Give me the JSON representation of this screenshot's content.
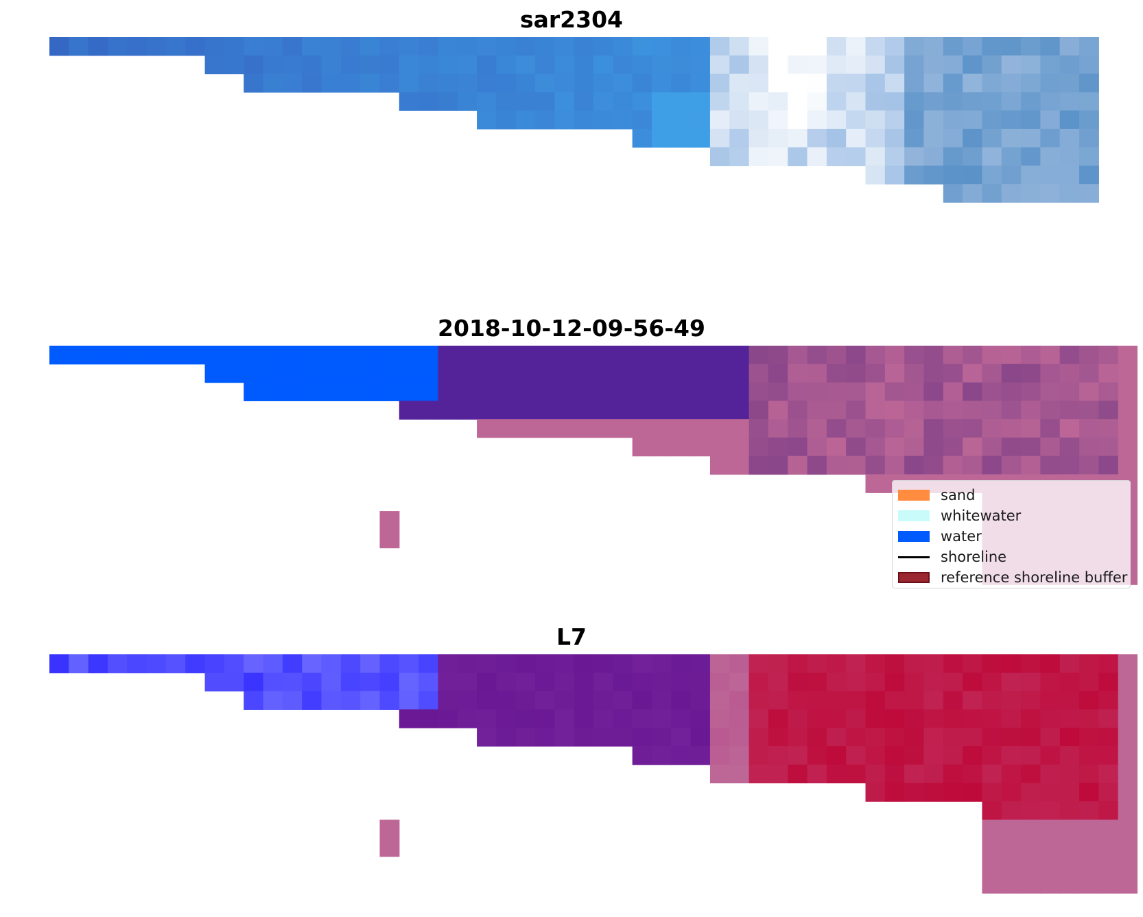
{
  "chart_data": [
    {
      "type": "heatmap",
      "title": "sar2304",
      "axes": "off",
      "grid": false,
      "colormap": "blue-to-white",
      "colors": {
        "low": "#3567c4",
        "mid": "#3f9fe6",
        "high": "#ffffff"
      }
    },
    {
      "type": "heatmap",
      "title": "2018-10-12-09-56-49",
      "axes": "off",
      "grid": false,
      "legend_placement": "lower-right",
      "legend": [
        {
          "label": "sand",
          "kind": "patch",
          "color": "#ff8c3f"
        },
        {
          "label": "whitewater",
          "kind": "patch",
          "color": "#c9fbfb"
        },
        {
          "label": "water",
          "kind": "patch",
          "color": "#005bff"
        },
        {
          "label": "shoreline",
          "kind": "line",
          "color": "#000000"
        },
        {
          "label": "reference shoreline buffer",
          "kind": "patch",
          "color": "#9b2830",
          "edge": "#6e0f18"
        }
      ],
      "colors": {
        "water": "#005bff",
        "buffer": "#bd6797",
        "overlap": "#54239a"
      }
    },
    {
      "type": "heatmap",
      "title": "L7",
      "axes": "off",
      "grid": false,
      "colors": {
        "water": "#3a33ff",
        "buffer": "#bd6797",
        "overlap": "#6a1894",
        "land": "#be0a3a"
      }
    }
  ]
}
